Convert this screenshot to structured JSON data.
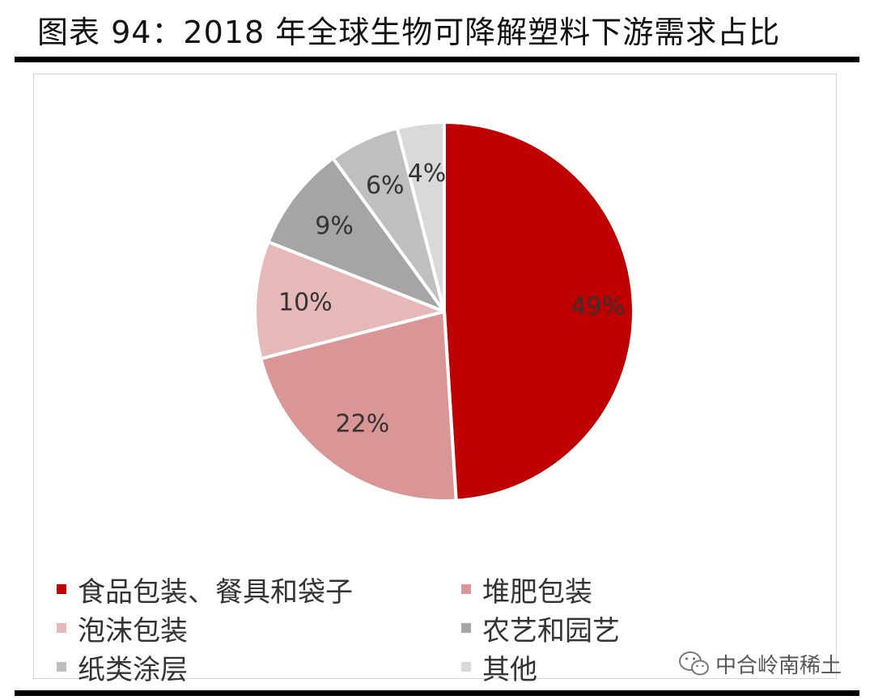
{
  "header": {
    "title": "图表 94：2018 年全球生物可降解塑料下游需求占比"
  },
  "chart_data": {
    "type": "pie",
    "title": "图表 94：2018 年全球生物可降解塑料下游需求占比",
    "start_angle_deg": 0,
    "direction": "clockwise",
    "legend_position": "bottom",
    "slices": [
      {
        "name": "食品包装、餐具和袋子",
        "value": 49,
        "label": "49%",
        "color": "#c00000"
      },
      {
        "name": "堆肥包装",
        "value": 22,
        "label": "22%",
        "color": "#d99694"
      },
      {
        "name": "泡沫包装",
        "value": 10,
        "label": "10%",
        "color": "#e6b9b8"
      },
      {
        "name": "农艺和园艺",
        "value": 9,
        "label": "9%",
        "color": "#a5a5a5"
      },
      {
        "name": "纸类涂层",
        "value": 6,
        "label": "6%",
        "color": "#bfbfbf"
      },
      {
        "name": "其他",
        "value": 4,
        "label": "4%",
        "color": "#d9d9d9"
      }
    ]
  },
  "watermark": {
    "text": "中合岭南稀土",
    "icon": "wechat-icon"
  }
}
